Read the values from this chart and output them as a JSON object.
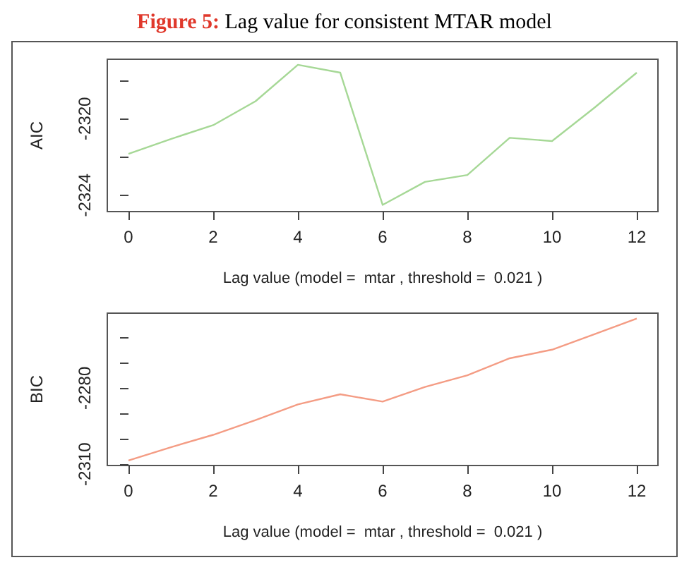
{
  "chart_data": [
    {
      "type": "line",
      "title": "Figure 5: Lag value for consistent MTAR model",
      "xlabel": "Lag value (model =  mtar , threshold =  0.021 )",
      "ylabel": "AIC",
      "x": [
        0,
        1,
        2,
        3,
        4,
        5,
        6,
        7,
        8,
        9,
        10,
        11,
        12
      ],
      "series": [
        {
          "color": "#a6d896",
          "values": [
            -2321.84,
            -2321.06,
            -2320.34,
            -2319.09,
            -2317.19,
            -2317.6,
            -2324.5,
            -2323.3,
            -2322.94,
            -2321.0,
            -2321.17,
            -2319.43,
            -2317.6
          ]
        }
      ],
      "xlim": [
        -0.5,
        12.5
      ],
      "xticks": [
        0,
        2,
        4,
        6,
        8,
        10,
        12
      ],
      "ylim": [
        -2324.85,
        -2316.9
      ],
      "yticks": [
        {
          "value": -2324,
          "label": "-2324"
        },
        {
          "value": -2322,
          "label": null
        },
        {
          "value": -2320,
          "label": "-2320"
        },
        {
          "value": -2318,
          "label": null
        }
      ],
      "grid": false,
      "marker": "none"
    },
    {
      "type": "line",
      "xlabel": "Lag value (model =  mtar , threshold =  0.021 )",
      "ylabel": "BIC",
      "x": [
        0,
        1,
        2,
        3,
        4,
        5,
        6,
        7,
        8,
        9,
        10,
        11,
        12
      ],
      "series": [
        {
          "color": "#f49c84",
          "values": [
            -2308.5,
            -2303.3,
            -2298.4,
            -2292.6,
            -2286.4,
            -2282.4,
            -2285.3,
            -2279.5,
            -2274.9,
            -2268.2,
            -2264.8,
            -2258.7,
            -2252.5
          ]
        }
      ],
      "xlim": [
        -0.5,
        12.5
      ],
      "xticks": [
        0,
        2,
        4,
        6,
        8,
        10,
        12
      ],
      "ylim": [
        -2310.5,
        -2250.4
      ],
      "yticks": [
        {
          "value": -2310,
          "label": "-2310"
        },
        {
          "value": -2300,
          "label": null
        },
        {
          "value": -2290,
          "label": null
        },
        {
          "value": -2280,
          "label": "-2280"
        },
        {
          "value": -2270,
          "label": null
        },
        {
          "value": -2260,
          "label": null
        }
      ],
      "grid": false,
      "marker": "none"
    }
  ]
}
